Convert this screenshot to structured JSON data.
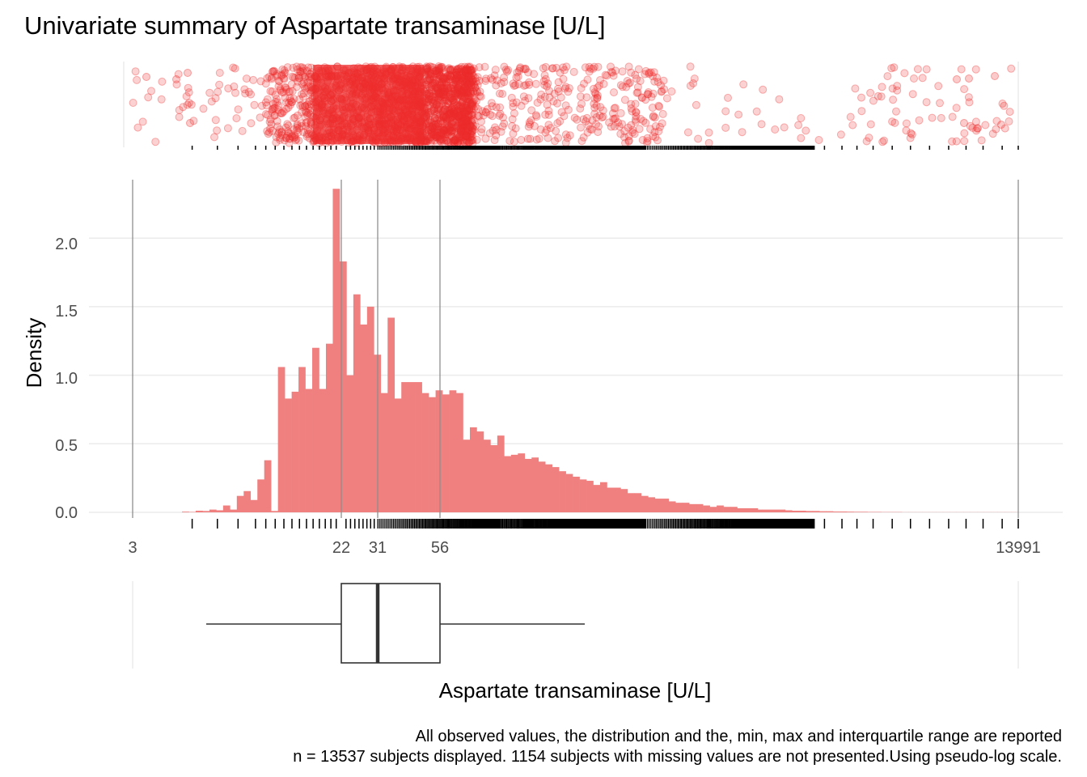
{
  "chart_data": {
    "type": "histogram",
    "title": "Univariate summary of Aspartate transaminase [U/L]",
    "xlabel": "Aspartate transaminase [U/L]",
    "ylabel": "Density",
    "x_scale": "pseudo-log",
    "x_ticks": [
      "3",
      "22",
      "31",
      "56",
      "13991"
    ],
    "y_ticks": [
      "0.0",
      "0.5",
      "1.0",
      "1.5",
      "2.0"
    ],
    "ylim": [
      0,
      2.45
    ],
    "grid": true,
    "reference_lines": [
      3,
      22,
      31,
      56,
      13991
    ],
    "bars_note": "density per bin, left to right along the pseudo-log x axis",
    "bars": [
      0.005,
      0.003,
      0.012,
      0.01,
      0.02,
      0.015,
      0.05,
      0.02,
      0.12,
      0.155,
      0.09,
      0.24,
      0.38,
      0.01,
      1.06,
      0.83,
      0.88,
      1.06,
      0.9,
      1.2,
      0.9,
      1.23,
      2.36,
      1.83,
      1.0,
      1.59,
      1.37,
      1.5,
      1.15,
      0.87,
      1.42,
      0.83,
      0.95,
      0.95,
      0.95,
      0.87,
      0.84,
      0.89,
      0.86,
      0.89,
      0.87,
      0.53,
      0.62,
      0.59,
      0.53,
      0.49,
      0.56,
      0.41,
      0.42,
      0.43,
      0.39,
      0.4,
      0.37,
      0.35,
      0.33,
      0.3,
      0.28,
      0.26,
      0.24,
      0.23,
      0.2,
      0.22,
      0.18,
      0.18,
      0.17,
      0.14,
      0.14,
      0.12,
      0.11,
      0.1,
      0.1,
      0.08,
      0.07,
      0.07,
      0.06,
      0.06,
      0.05,
      0.04,
      0.05,
      0.04,
      0.04,
      0.03,
      0.03,
      0.03,
      0.02,
      0.02,
      0.02,
      0.02,
      0.015,
      0.012,
      0.012,
      0.01,
      0.01,
      0.008,
      0.008,
      0.006,
      0.006,
      0.005,
      0.004,
      0.004,
      0.003,
      0.003,
      0.002,
      0.002,
      0.002,
      0.001,
      0.001,
      0.001,
      0.001,
      0.001,
      0.001,
      0.001,
      0.001,
      0.001,
      0.001,
      0.001,
      0.001,
      0.001,
      0.001,
      0.001,
      0.001,
      0.001
    ],
    "boxplot": {
      "min": 3,
      "q1": 22,
      "median": 31,
      "q3": 56,
      "max": 13991
    },
    "caption_lines": [
      "All observed values, the distribution and the, min, max and interquartile range are reported",
      "n = 13537 subjects displayed. 1154 subjects with missing values are not presented.Using pseudo-log scale."
    ],
    "colors": {
      "bars": "#f08080",
      "points": "#ee2c2c",
      "ref_line": "#8c8c8c",
      "grid": "#ebebeb"
    }
  }
}
